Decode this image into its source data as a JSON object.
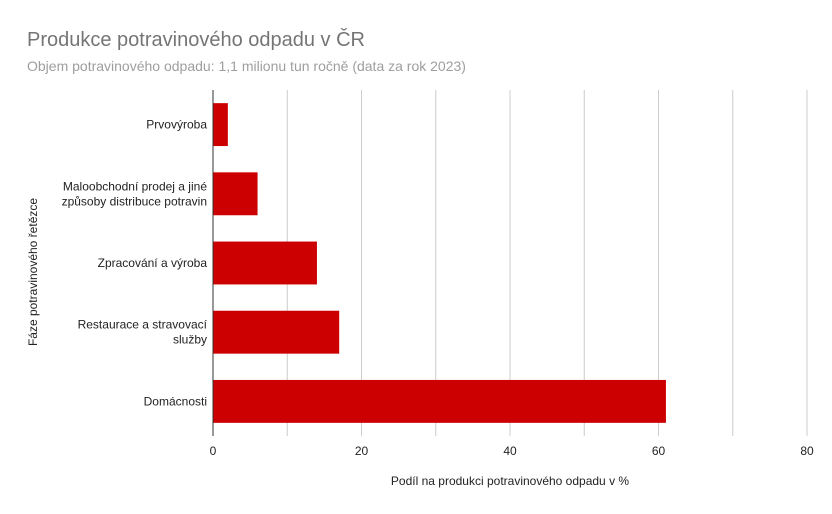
{
  "chart_data": {
    "type": "bar",
    "orientation": "horizontal",
    "title": "Produkce potravinového odpadu v ČR",
    "subtitle": "Objem potravinového odpadu: 1,1 milionu tun ročně (data za rok 2023)",
    "xlabel": "Podíl na produkci potravinového odpadu v %",
    "ylabel": "Fáze potravinového řetězce",
    "categories": [
      [
        "Prvovýroba"
      ],
      [
        "Maloobchodní prodej a jiné",
        "způsoby distribuce potravin"
      ],
      [
        "Zpracování a výroba"
      ],
      [
        "Restaurace a stravovací",
        "služby"
      ],
      [
        "Domácnosti"
      ]
    ],
    "values": [
      2,
      6,
      14,
      17,
      61
    ],
    "xlim": [
      0,
      80
    ],
    "xticks": [
      0,
      20,
      40,
      60,
      80
    ],
    "grid": true,
    "legend": "none",
    "bar_color": "#cc0000",
    "grid_color": "#cccccc",
    "axis_color": "#333333"
  }
}
